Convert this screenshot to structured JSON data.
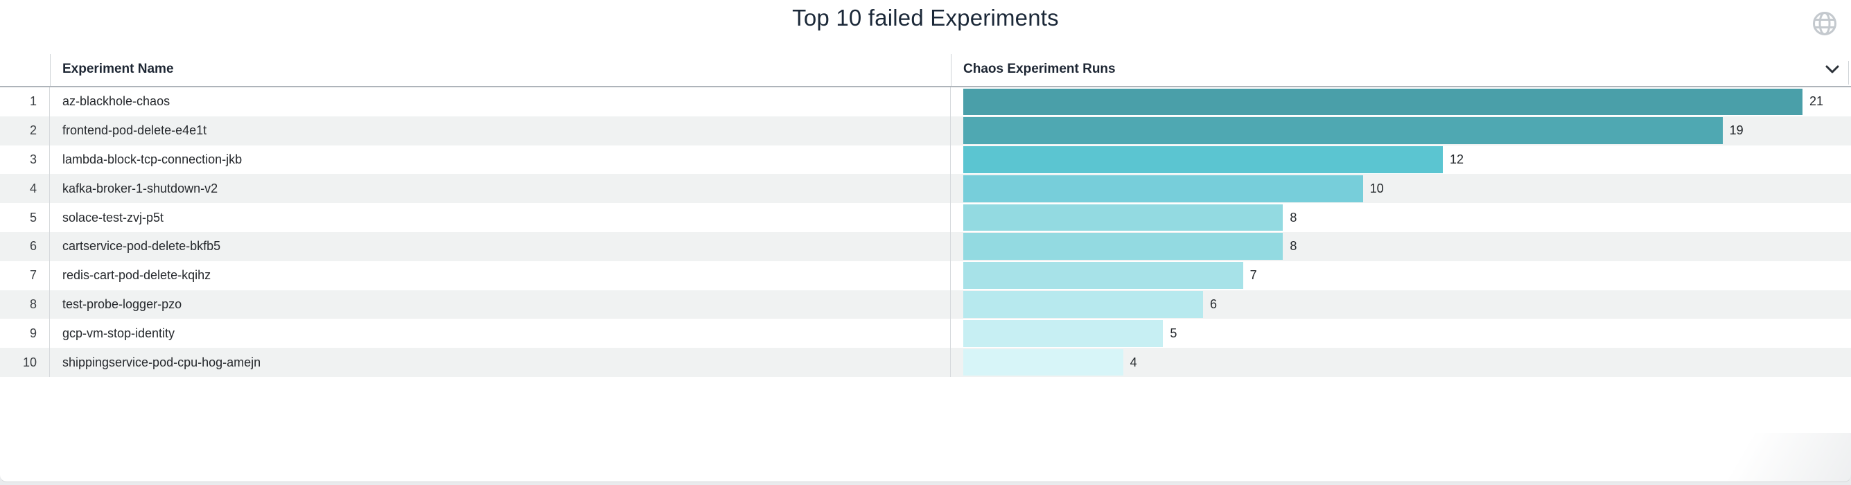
{
  "panel": {
    "title": "Top 10 failed Experiments"
  },
  "icons": {
    "globe": "globe-icon",
    "chevron": "chevron-down-icon",
    "globe_color": "#c4c9ce",
    "chevron_color": "#2b3138"
  },
  "table": {
    "col_experiment": "Experiment Name",
    "col_runs": "Chaos Experiment Runs"
  },
  "chart_data": {
    "type": "bar",
    "orientation": "horizontal",
    "title": "Top 10 failed Experiments",
    "xlabel": "Chaos Experiment Runs",
    "ylabel": "Experiment Name",
    "ranks": [
      1,
      2,
      3,
      4,
      5,
      6,
      7,
      8,
      9,
      10
    ],
    "categories": [
      "az-blackhole-chaos",
      "frontend-pod-delete-e4e1t",
      "lambda-block-tcp-connection-jkb",
      "kafka-broker-1-shutdown-v2",
      "solace-test-zvj-p5t",
      "cartservice-pod-delete-bkfb5",
      "redis-cart-pod-delete-kqihz",
      "test-probe-logger-pzo",
      "gcp-vm-stop-identity",
      "shippingservice-pod-cpu-hog-amejn"
    ],
    "values": [
      21,
      19,
      12,
      10,
      8,
      8,
      7,
      6,
      5,
      4
    ],
    "xlim": [
      0,
      21
    ],
    "grid": false,
    "legend": "none",
    "bar_colors": [
      "#4A9FA9",
      "#4FA8B2",
      "#5BC5D1",
      "#77CEDA",
      "#93DAE1",
      "#93DAE1",
      "#A7E2E8",
      "#B7E9EE",
      "#C7EFF3",
      "#D7F5F8"
    ],
    "row_alt_color": "#f0f2f2",
    "value_label_color": "#24282c"
  }
}
